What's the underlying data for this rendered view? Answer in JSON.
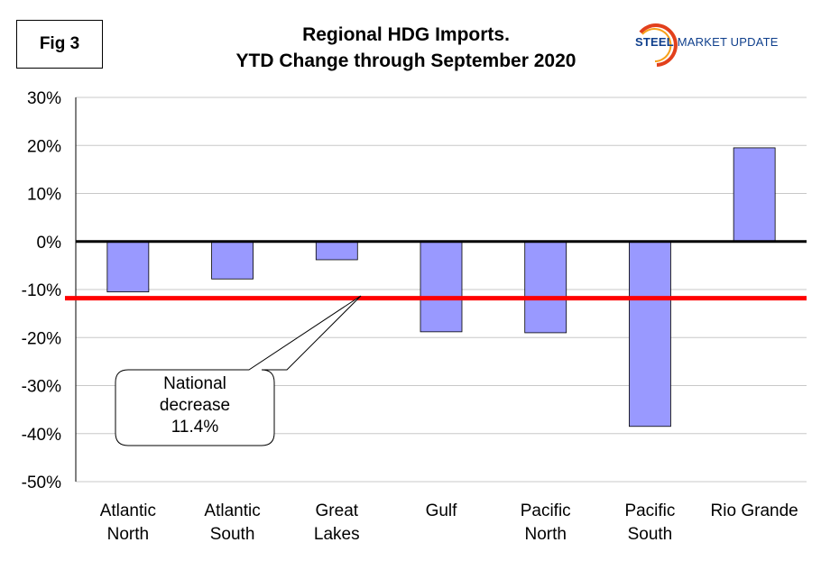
{
  "figure_label": "Fig 3",
  "title_line1": "Regional HDG Imports.",
  "title_line2": "YTD Change through September 2020",
  "logo": {
    "word1": "STEEL",
    "word2": "MARKET UPDATE",
    "brand_color": "#0f3f8c",
    "swoosh_color": "#e2401c"
  },
  "callout": {
    "line1": "National",
    "line2": "decrease",
    "line3": "11.4%"
  },
  "chart_data": {
    "type": "bar",
    "title": "Regional HDG Imports. YTD Change through September 2020",
    "xlabel": "",
    "ylabel": "",
    "categories": [
      [
        "Atlantic",
        "North"
      ],
      [
        "Atlantic",
        "South"
      ],
      [
        "Great",
        "Lakes"
      ],
      [
        "Gulf"
      ],
      [
        "Pacific",
        "North"
      ],
      [
        "Pacific",
        "South"
      ],
      [
        "Rio Grande"
      ]
    ],
    "values": [
      -10.5,
      -7.8,
      -3.8,
      -18.8,
      -19.0,
      -38.5,
      19.5
    ],
    "ylim": [
      -50,
      30
    ],
    "yticks": [
      30,
      20,
      10,
      0,
      -10,
      -20,
      -30,
      -40,
      -50
    ],
    "ytick_labels": [
      "30%",
      "20%",
      "10%",
      "0%",
      "-10%",
      "-20%",
      "-30%",
      "-40%",
      "-50%"
    ],
    "reference_line": {
      "label": "National decrease 11.4%",
      "value": -11.4,
      "color": "#ff0000"
    },
    "bar_color": "#9999ff",
    "grid": true,
    "legend": "none"
  }
}
